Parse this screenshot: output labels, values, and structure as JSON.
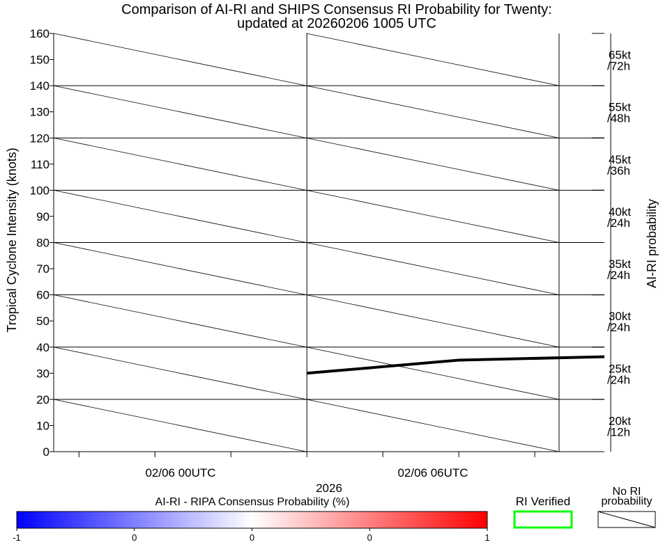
{
  "chart_data": {
    "type": "line",
    "title_line1": "Comparison of AI-RI and SHIPS Consensus RI Probability for Twenty:",
    "title_line2": "updated at 20260206 1005 UTC",
    "ylabel": "Tropical Cyclone Intensity (knots)",
    "ylabel_right": "AI-RI probability",
    "ylim": [
      0,
      160
    ],
    "yticks": [
      0,
      10,
      20,
      30,
      40,
      50,
      60,
      70,
      80,
      90,
      100,
      110,
      120,
      130,
      140,
      150,
      160
    ],
    "xlim_hours": [
      -10,
      11.75
    ],
    "x_tick_labels": [
      {
        "hour": 0,
        "label": "02/06 00UTC"
      },
      {
        "hour": 6,
        "label": "02/06 06UTC"
      }
    ],
    "x_minor_ticks_hours": [
      -9,
      -6,
      -3,
      0,
      3,
      6,
      9
    ],
    "x_major_lines_hours": [
      0,
      12
    ],
    "year_label": "2026",
    "series": [
      {
        "name": "intensity",
        "color": "#000000",
        "points": [
          {
            "hour": 0,
            "value": 30
          },
          {
            "hour": 6,
            "value": 35
          },
          {
            "hour": 11.75,
            "value": 36.3
          }
        ]
      }
    ],
    "ri_bands": [
      {
        "low": 0,
        "high": 20,
        "label1": "20kt",
        "label2": "/12h",
        "probability": null
      },
      {
        "low": 20,
        "high": 40,
        "label1": "25kt",
        "label2": "/24h",
        "probability": null
      },
      {
        "low": 40,
        "high": 60,
        "label1": "30kt",
        "label2": "/24h",
        "probability": null
      },
      {
        "low": 60,
        "high": 80,
        "label1": "35kt",
        "label2": "/24h",
        "probability": null
      },
      {
        "low": 80,
        "high": 100,
        "label1": "40kt",
        "label2": "/24h",
        "probability": null
      },
      {
        "low": 100,
        "high": 120,
        "label1": "45kt",
        "label2": "/36h",
        "probability": null
      },
      {
        "low": 120,
        "high": 140,
        "label1": "55kt",
        "label2": "/48h",
        "probability": null
      },
      {
        "low": 140,
        "high": 160,
        "label1": "65kt",
        "label2": "/72h",
        "probability": null
      }
    ],
    "colorbar": {
      "title": "AI-RI - RIPA Consensus Probability (%)",
      "colors": [
        "#0000ff",
        "#ffffff",
        "#ff0000"
      ],
      "tick_labels": [
        "-1",
        "0",
        "0",
        "0",
        "1"
      ]
    },
    "legend": {
      "verified_label": "RI Verified",
      "verified_color": "#00ff00",
      "no_prob_label1": "No RI",
      "no_prob_label2": "probability"
    }
  }
}
